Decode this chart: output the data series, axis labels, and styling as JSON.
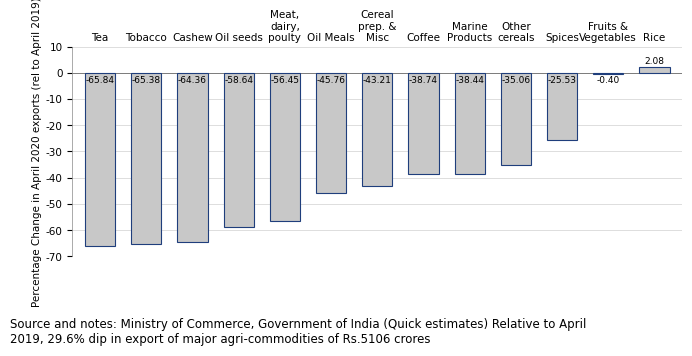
{
  "categories": [
    "Tea",
    "Tobacco",
    "Cashew",
    "Oil seeds",
    "Meat,\ndairy,\npoulty",
    "Oil Meals",
    "Cereal\nprep. &\nMisc",
    "Coffee",
    "Marine\nProducts",
    "Other\ncereals",
    "Spices",
    "Fruits &\nVegetables",
    "Rice"
  ],
  "values": [
    -65.84,
    -65.38,
    -64.36,
    -58.64,
    -56.45,
    -45.76,
    -43.21,
    -38.74,
    -38.44,
    -35.06,
    -25.53,
    -0.4,
    2.08
  ],
  "value_labels": [
    "-65.84",
    "-65.38",
    "-64.36",
    "-58.64",
    "-56.45",
    "-45.76",
    "-43.21",
    "-38.74",
    "-38.44",
    "-35.06",
    "-25.53",
    "-0.40",
    "2.08"
  ],
  "bar_color": "#c8c8c8",
  "bar_edge_color": "#1f3e7c",
  "ylim": [
    -70,
    10
  ],
  "yticks": [
    -70,
    -60,
    -50,
    -40,
    -30,
    -20,
    -10,
    0,
    10
  ],
  "ylabel": "Percentage Change in April 2020 exports (rel to April 2019)",
  "source_note": "Source and notes: Ministry of Commerce, Government of India (Quick estimates) Relative to April\n2019, 29.6% dip in export of major agri-commodities of Rs.5106 crores",
  "label_fontsize": 6.5,
  "cat_fontsize": 7.5,
  "tick_fontsize": 7.5,
  "ylabel_fontsize": 7.5,
  "source_fontsize": 8.5,
  "background_color": "#ffffff"
}
